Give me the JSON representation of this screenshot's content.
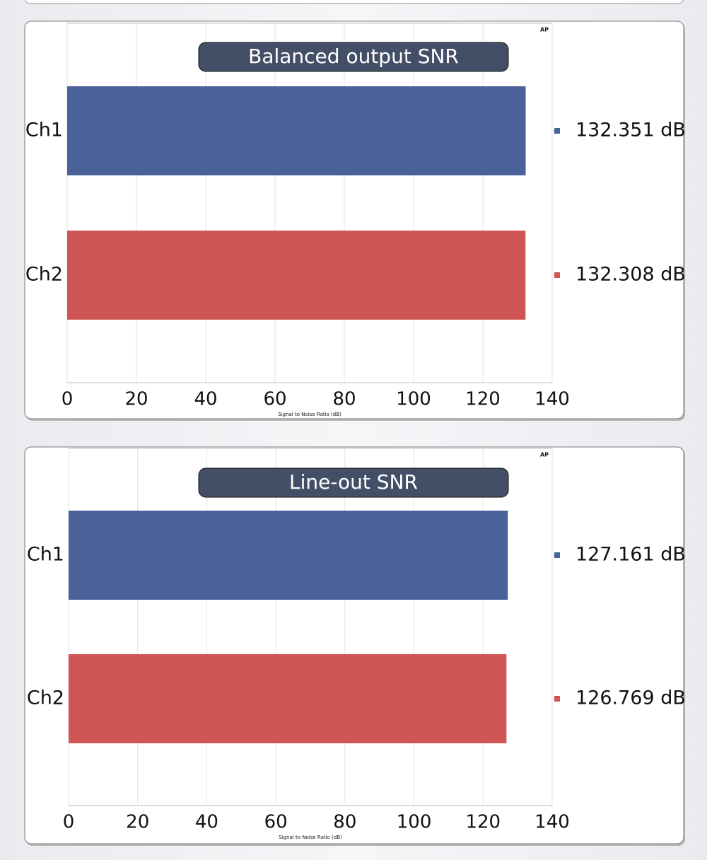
{
  "chart_data": [
    {
      "type": "bar",
      "orientation": "horizontal",
      "title": "Balanced output SNR",
      "categories": [
        "Ch1",
        "Ch2"
      ],
      "values": [
        132.351,
        132.308
      ],
      "value_labels": [
        "132.351 dB",
        "132.308 dB"
      ],
      "colors": [
        "#4a619a",
        "#d05555"
      ],
      "xlim": [
        0,
        140
      ],
      "xticks": [
        0,
        20,
        40,
        60,
        80,
        100,
        120,
        140
      ],
      "xlabel": "Signal to Noise Ratio (dB)",
      "grid": true
    },
    {
      "type": "bar",
      "orientation": "horizontal",
      "title": "Line-out SNR",
      "categories": [
        "Ch1",
        "Ch2"
      ],
      "values": [
        127.161,
        126.769
      ],
      "value_labels": [
        "127.161 dB",
        "126.769 dB"
      ],
      "colors": [
        "#4a619a",
        "#d05555"
      ],
      "xlim": [
        0,
        140
      ],
      "xticks": [
        0,
        20,
        40,
        60,
        80,
        100,
        120,
        140
      ],
      "xlabel": "Signal to Noise Ratio (dB)",
      "grid": true
    }
  ]
}
